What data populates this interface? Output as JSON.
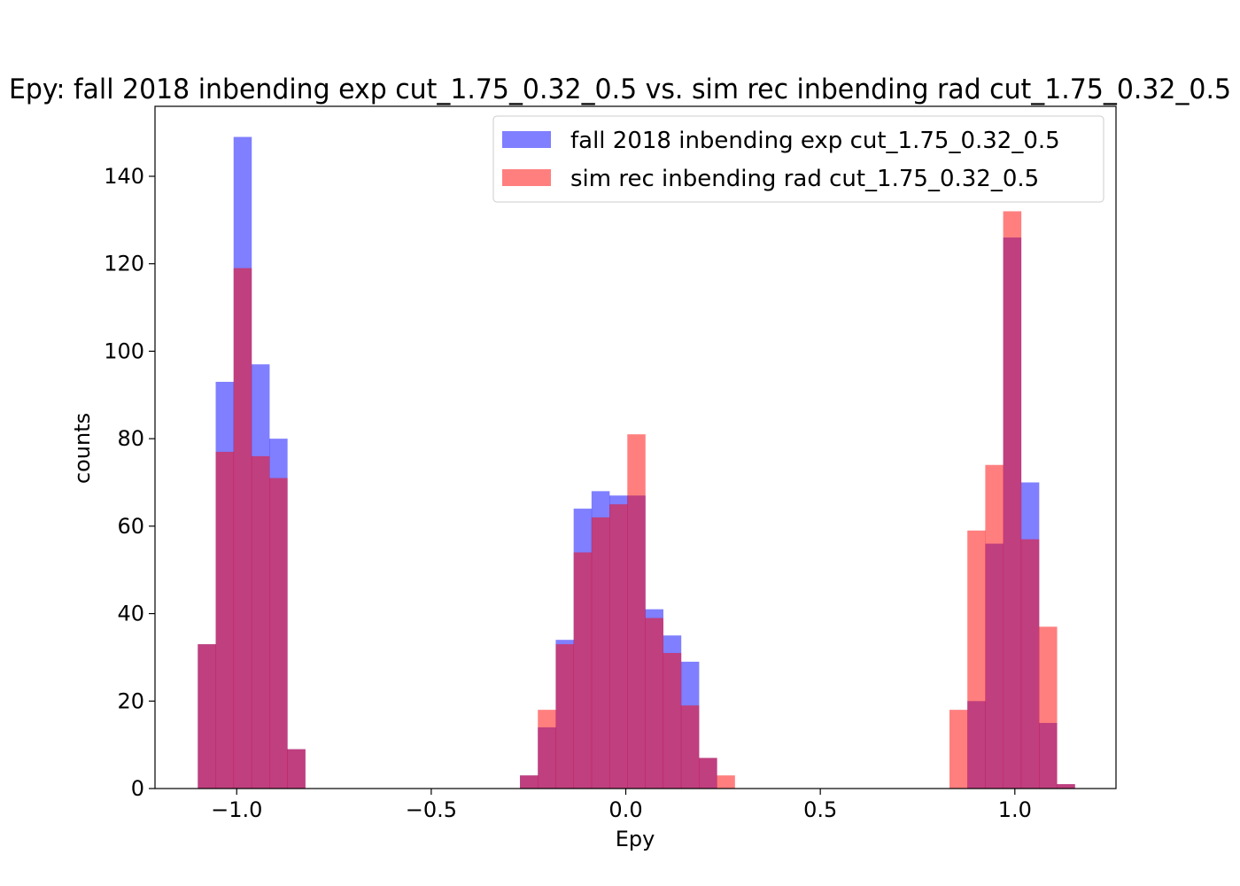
{
  "chart_data": {
    "type": "bar",
    "title": "Epy: fall 2018 inbending exp cut_1.75_0.32_0.5 vs. sim rec inbending rad cut_1.75_0.32_0.5",
    "xlabel": "Epy",
    "ylabel": "counts",
    "xlim": [
      -1.21,
      1.26
    ],
    "ylim": [
      0,
      156
    ],
    "xticks": [
      -1.0,
      -0.5,
      0.0,
      0.5,
      1.0
    ],
    "xtick_labels": [
      "−1.0",
      "−0.5",
      "0.0",
      "0.5",
      "1.0"
    ],
    "yticks": [
      0,
      20,
      40,
      60,
      80,
      100,
      120,
      140
    ],
    "ytick_labels": [
      "0",
      "20",
      "40",
      "60",
      "80",
      "100",
      "120",
      "140"
    ],
    "bin_width": 0.046,
    "legend_position": "top-right",
    "grid": false,
    "series": [
      {
        "name": "fall 2018 inbending exp cut_1.75_0.32_0.5",
        "color": "#0000ff",
        "alpha": 0.5,
        "bins": [
          {
            "x0": -1.1,
            "value": 33
          },
          {
            "x0": -1.054,
            "value": 93
          },
          {
            "x0": -1.008,
            "value": 149
          },
          {
            "x0": -0.962,
            "value": 97
          },
          {
            "x0": -0.916,
            "value": 80
          },
          {
            "x0": -0.87,
            "value": 9
          },
          {
            "x0": -0.272,
            "value": 3
          },
          {
            "x0": -0.226,
            "value": 14
          },
          {
            "x0": -0.18,
            "value": 34
          },
          {
            "x0": -0.134,
            "value": 64
          },
          {
            "x0": -0.088,
            "value": 68
          },
          {
            "x0": -0.042,
            "value": 67
          },
          {
            "x0": 0.004,
            "value": 67
          },
          {
            "x0": 0.05,
            "value": 41
          },
          {
            "x0": 0.096,
            "value": 35
          },
          {
            "x0": 0.142,
            "value": 29
          },
          {
            "x0": 0.188,
            "value": 7
          },
          {
            "x0": 0.878,
            "value": 20
          },
          {
            "x0": 0.924,
            "value": 56
          },
          {
            "x0": 0.97,
            "value": 126
          },
          {
            "x0": 1.016,
            "value": 70
          },
          {
            "x0": 1.062,
            "value": 15
          },
          {
            "x0": 1.108,
            "value": 1
          }
        ]
      },
      {
        "name": "sim rec inbending rad cut_1.75_0.32_0.5",
        "color": "#ff0000",
        "alpha": 0.5,
        "bins": [
          {
            "x0": -1.1,
            "value": 33
          },
          {
            "x0": -1.054,
            "value": 77
          },
          {
            "x0": -1.008,
            "value": 119
          },
          {
            "x0": -0.962,
            "value": 76
          },
          {
            "x0": -0.916,
            "value": 71
          },
          {
            "x0": -0.87,
            "value": 9
          },
          {
            "x0": -0.272,
            "value": 3
          },
          {
            "x0": -0.226,
            "value": 18
          },
          {
            "x0": -0.18,
            "value": 33
          },
          {
            "x0": -0.134,
            "value": 54
          },
          {
            "x0": -0.088,
            "value": 62
          },
          {
            "x0": -0.042,
            "value": 65
          },
          {
            "x0": 0.004,
            "value": 81
          },
          {
            "x0": 0.05,
            "value": 39
          },
          {
            "x0": 0.096,
            "value": 31
          },
          {
            "x0": 0.142,
            "value": 19
          },
          {
            "x0": 0.188,
            "value": 7
          },
          {
            "x0": 0.234,
            "value": 3
          },
          {
            "x0": 0.832,
            "value": 18
          },
          {
            "x0": 0.878,
            "value": 59
          },
          {
            "x0": 0.924,
            "value": 74
          },
          {
            "x0": 0.97,
            "value": 132
          },
          {
            "x0": 1.016,
            "value": 57
          },
          {
            "x0": 1.062,
            "value": 37
          },
          {
            "x0": 1.108,
            "value": 1
          }
        ]
      }
    ]
  }
}
